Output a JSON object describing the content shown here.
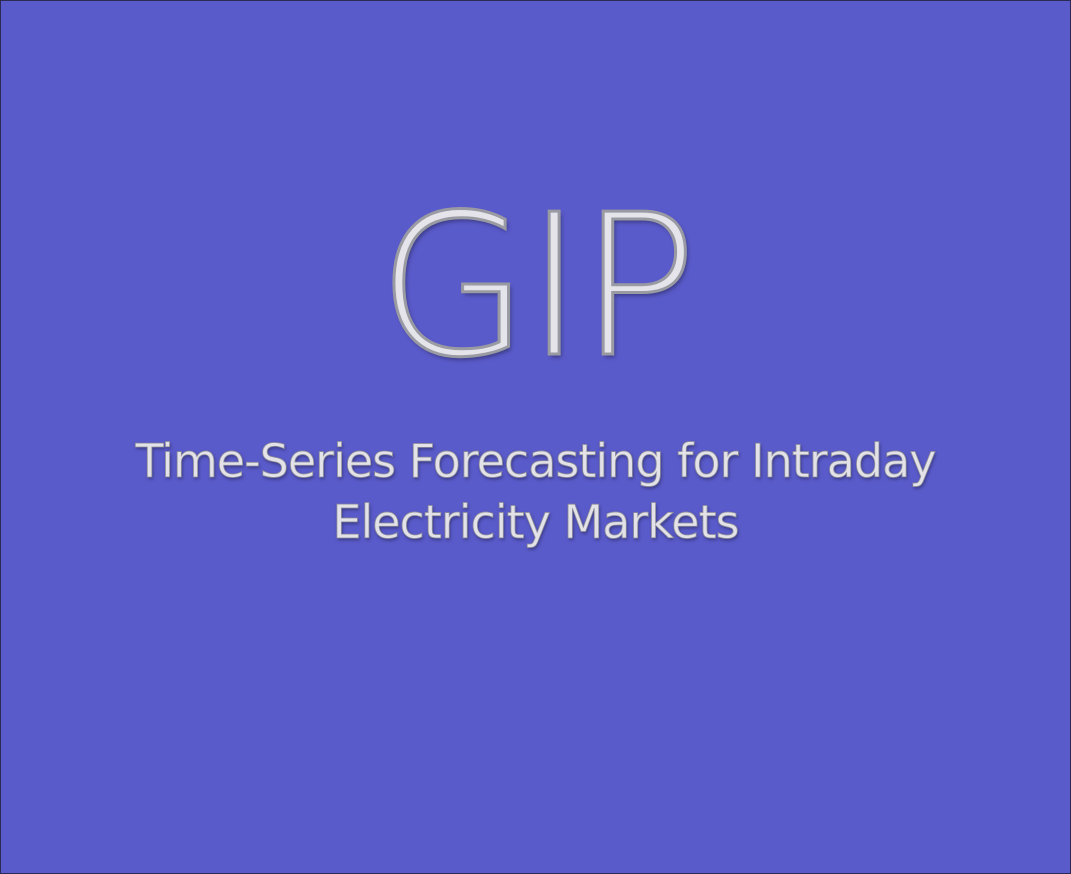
{
  "slide": {
    "logo_text": "GIP",
    "subtitle_line1": "Time-Series Forecasting for Intraday",
    "subtitle_line2": "Electricity Markets"
  },
  "colors": {
    "background": "#5a5bca",
    "text": "#e4e4ea",
    "text_outline": "#9a9aa3"
  }
}
